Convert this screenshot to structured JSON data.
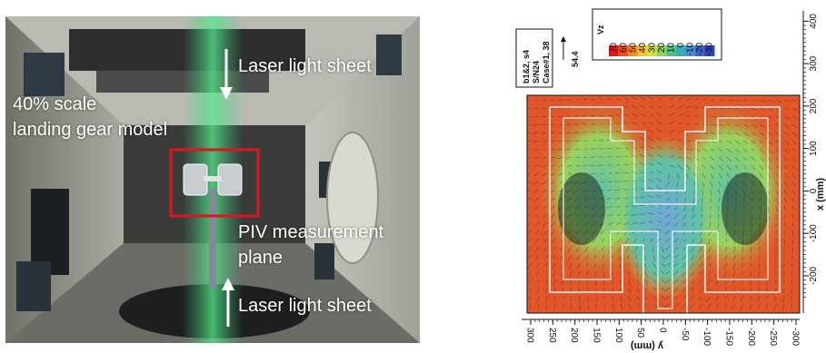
{
  "photo": {
    "label_sheet_top": "Laser light sheet",
    "label_model_line1": "40% scale",
    "label_model_line2": "landing gear model",
    "label_piv_line1": "PIV measurement",
    "label_piv_line2": "plane",
    "label_sheet_bottom": "Laser light sheet"
  },
  "plot": {
    "info_lines": [
      "b1&2, s4",
      "S/N24",
      "Case#1, 38"
    ],
    "ref_vector": "54.4",
    "colorbar_label": "Vz",
    "colorbar_ticks": [
      "70",
      "60",
      "50",
      "40",
      "30",
      "20",
      "10",
      "0",
      "-10",
      "-20",
      "-30"
    ],
    "colorbar_colors": [
      "#d7191c",
      "#f04e1e",
      "#f88a1f",
      "#f5c431",
      "#cfe04a",
      "#8fd15a",
      "#55c08a",
      "#3aa9b8",
      "#4a8fd0",
      "#3d67c8",
      "#2b46b0"
    ],
    "field_colors": {
      "warm": "#e2572a",
      "hot": "#d43a22",
      "cool": "#5fc2a5",
      "cold": "#6fa8d8",
      "mid": "#9bd25c"
    },
    "x_axis_label": "y (mm)",
    "y_axis_label": "x (mm)"
  },
  "chart_data": {
    "type": "heatmap",
    "title": "",
    "xlabel": "y (mm)",
    "ylabel": "x (mm)",
    "x_ticks": [
      300,
      250,
      200,
      150,
      100,
      50,
      0,
      -50,
      -100,
      -150,
      -200,
      -250,
      -300
    ],
    "y_ticks": [
      -200,
      -100,
      0,
      100,
      200,
      300,
      400
    ],
    "xlim": [
      300,
      -300
    ],
    "ylim": [
      -260,
      420
    ],
    "colorbar": {
      "label": "Vz",
      "ticks": [
        70,
        60,
        50,
        40,
        30,
        20,
        10,
        0,
        -10,
        -20,
        -30
      ]
    },
    "reference_vector": 54.4
  }
}
